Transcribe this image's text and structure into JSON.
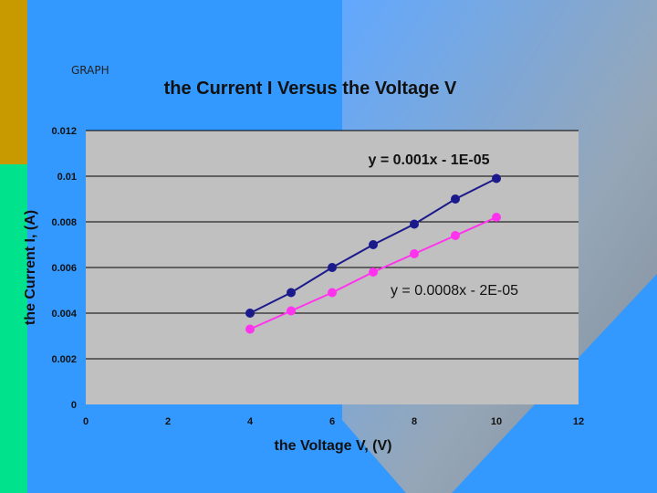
{
  "slide": {
    "label": "GRAPH"
  },
  "colors": {
    "background": "#3399ff",
    "left_bar_top": "#c89a00",
    "left_bar_bottom": "#00e38c",
    "plot_area": "#c0c0c0",
    "series_1": "#1a1a8c",
    "series_2": "#ff33ee"
  },
  "chart_data": {
    "type": "scatter",
    "title": "the Current I Versus the Voltage V",
    "xlabel": "the Voltage V, (V)",
    "ylabel": "the Current I, (A)",
    "xlim": [
      0,
      12
    ],
    "ylim": [
      0,
      0.012
    ],
    "x_ticks": [
      "0",
      "2",
      "4",
      "6",
      "8",
      "10",
      "12"
    ],
    "y_ticks": [
      "0",
      "0.002",
      "0.004",
      "0.006",
      "0.008",
      "0.01",
      "0.012"
    ],
    "grid": "horizontal",
    "series": [
      {
        "x": [
          4,
          5,
          6,
          7,
          8,
          9,
          10
        ],
        "y": [
          0.004,
          0.0049,
          0.006,
          0.007,
          0.0079,
          0.009,
          0.0099
        ],
        "trendline": {
          "slope": 0.001,
          "intercept": -1e-05,
          "label": "y = 0.001x - 1E-05"
        }
      },
      {
        "x": [
          4,
          5,
          6,
          7,
          8,
          9,
          10
        ],
        "y": [
          0.0033,
          0.0041,
          0.0049,
          0.0058,
          0.0066,
          0.0074,
          0.0082
        ],
        "trendline": {
          "slope": 0.0008,
          "intercept": -2e-05,
          "label": "y = 0.0008x - 2E-05"
        }
      }
    ]
  }
}
